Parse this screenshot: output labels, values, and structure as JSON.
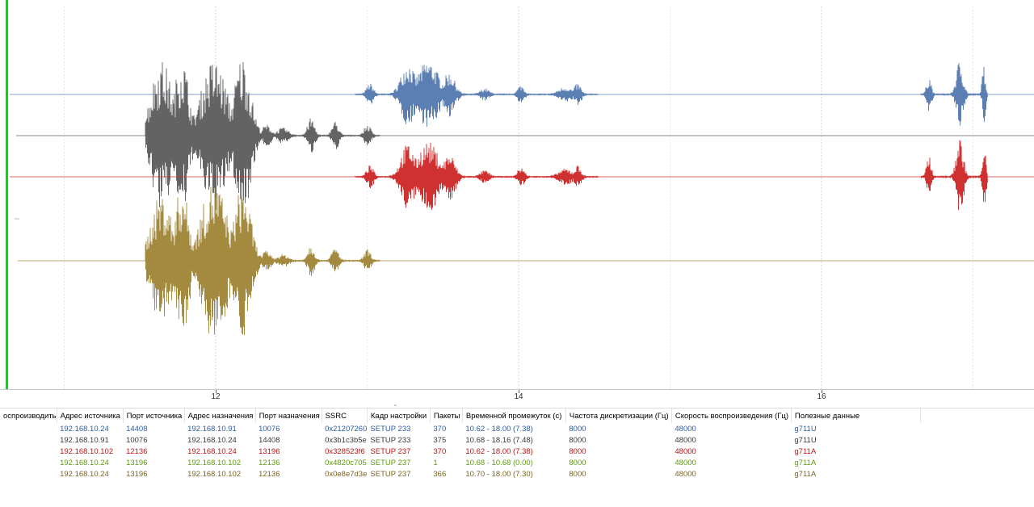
{
  "axis": {
    "ticks": [
      {
        "t": 12,
        "label": "12"
      },
      {
        "t": 14,
        "label": "14"
      },
      {
        "t": 16,
        "label": "16"
      }
    ]
  },
  "colors": {
    "cursor": "#00dd00",
    "stream_colors": [
      "#5b7fb3",
      "#636363",
      "#cf3030",
      "#7aa82f",
      "#a48a3e"
    ]
  },
  "table": {
    "columns": [
      "оспроизводить",
      "Адрес источника",
      "Порт источника",
      "Адрес назначения",
      "Порт назначения",
      "SSRC",
      "Кадр настройки",
      "Пакеты",
      "Временной промежуток (с)",
      "Частота дискретизации (Гц)",
      "Скорость воспроизведения (Гц)",
      "Полезные данные"
    ],
    "rows": [
      {
        "color": "#2e5c9e",
        "cells": [
          "",
          "192.168.10.24",
          "14408",
          "192.168.10.91",
          "10076",
          "0x21207260",
          "SETUP 233",
          "370",
          "10.62 - 18.00 (7.38)",
          "8000",
          "48000",
          "g711U"
        ]
      },
      {
        "color": "#3a3a3a",
        "cells": [
          "",
          "192.168.10.91",
          "10076",
          "192.168.10.24",
          "14408",
          "0x3b1c3b5e",
          "SETUP 233",
          "375",
          "10.68 - 18.16 (7.48)",
          "8000",
          "48000",
          "g711U"
        ]
      },
      {
        "color": "#b81818",
        "cells": [
          "",
          "192.168.10.102",
          "12136",
          "192.168.10.24",
          "13196",
          "0x328523f6",
          "SETUP 237",
          "370",
          "10.62 - 18.00 (7.38)",
          "8000",
          "48000",
          "g711A"
        ]
      },
      {
        "color": "#5d9a12",
        "cells": [
          "",
          "192.168.10.24",
          "13196",
          "192.168.10.102",
          "12136",
          "0x4820c705",
          "SETUP 237",
          "1",
          "10.68 - 10.68 (0.00)",
          "8000",
          "48000",
          "g711A"
        ]
      },
      {
        "color": "#7a6420",
        "cells": [
          "",
          "192.168.10.24",
          "13196",
          "192.168.10.102",
          "12136",
          "0x0e8e7d3e",
          "SETUP 237",
          "366",
          "10.70 - 18.00 (7.30)",
          "8000",
          "48000",
          "g711A"
        ]
      }
    ]
  }
}
